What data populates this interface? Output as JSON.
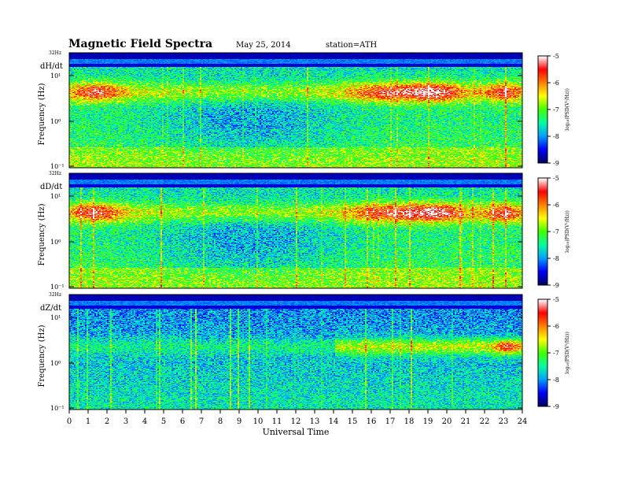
{
  "header": {
    "title": "Magnetic  Field  Spectra",
    "date": "May 25, 2014",
    "station": "station=ATH"
  },
  "chart_data": {
    "type": "heatmap",
    "title": "Magnetic  Field  Spectra",
    "xlabel": "Universal Time",
    "x_ticks": [
      "0",
      "1",
      "2",
      "3",
      "4",
      "5",
      "6",
      "7",
      "8",
      "9",
      "10",
      "11",
      "12",
      "13",
      "14",
      "15",
      "16",
      "17",
      "18",
      "19",
      "20",
      "21",
      "22",
      "23",
      "24"
    ],
    "xlim": [
      0,
      24
    ],
    "y_scale": "log",
    "colormap": [
      "#000064",
      "#0000ff",
      "#00a0ff",
      "#00ffa0",
      "#40ff00",
      "#ffff00",
      "#ff8000",
      "#ff0000",
      "#ffffff"
    ],
    "panels": [
      {
        "name": "dH/dt",
        "ylabel": "Frequency (Hz)",
        "top_label": "32Hz",
        "y_ticks": [
          "10¹",
          "10⁰",
          "10⁻¹"
        ],
        "colorbar_label": "log₁₀(PSD(V²/Hz))",
        "colorbar_ticks": [
          "-5",
          "-6",
          "-7",
          "-8",
          "-9"
        ],
        "clim": [
          -9,
          -5
        ]
      },
      {
        "name": "dD/dt",
        "ylabel": "Frequency (Hz)",
        "top_label": "32Hz",
        "y_ticks": [
          "10¹",
          "10⁰",
          "10⁻¹"
        ],
        "colorbar_label": "log₁₀(PSD(V²/Hz))",
        "colorbar_ticks": [
          "-5",
          "-6",
          "-7",
          "-8",
          "-9"
        ],
        "clim": [
          -9,
          -5
        ]
      },
      {
        "name": "dZ/dt",
        "ylabel": "Frequency (Hz)",
        "top_label": "32Hz",
        "y_ticks": [
          "10¹",
          "10⁰",
          "10⁻¹"
        ],
        "colorbar_label": "log₁₀(PSD(V²/Hz))",
        "colorbar_ticks": [
          "-5",
          "-6",
          "-7",
          "-8",
          "-9"
        ],
        "clim": [
          -9,
          -5
        ]
      }
    ]
  }
}
